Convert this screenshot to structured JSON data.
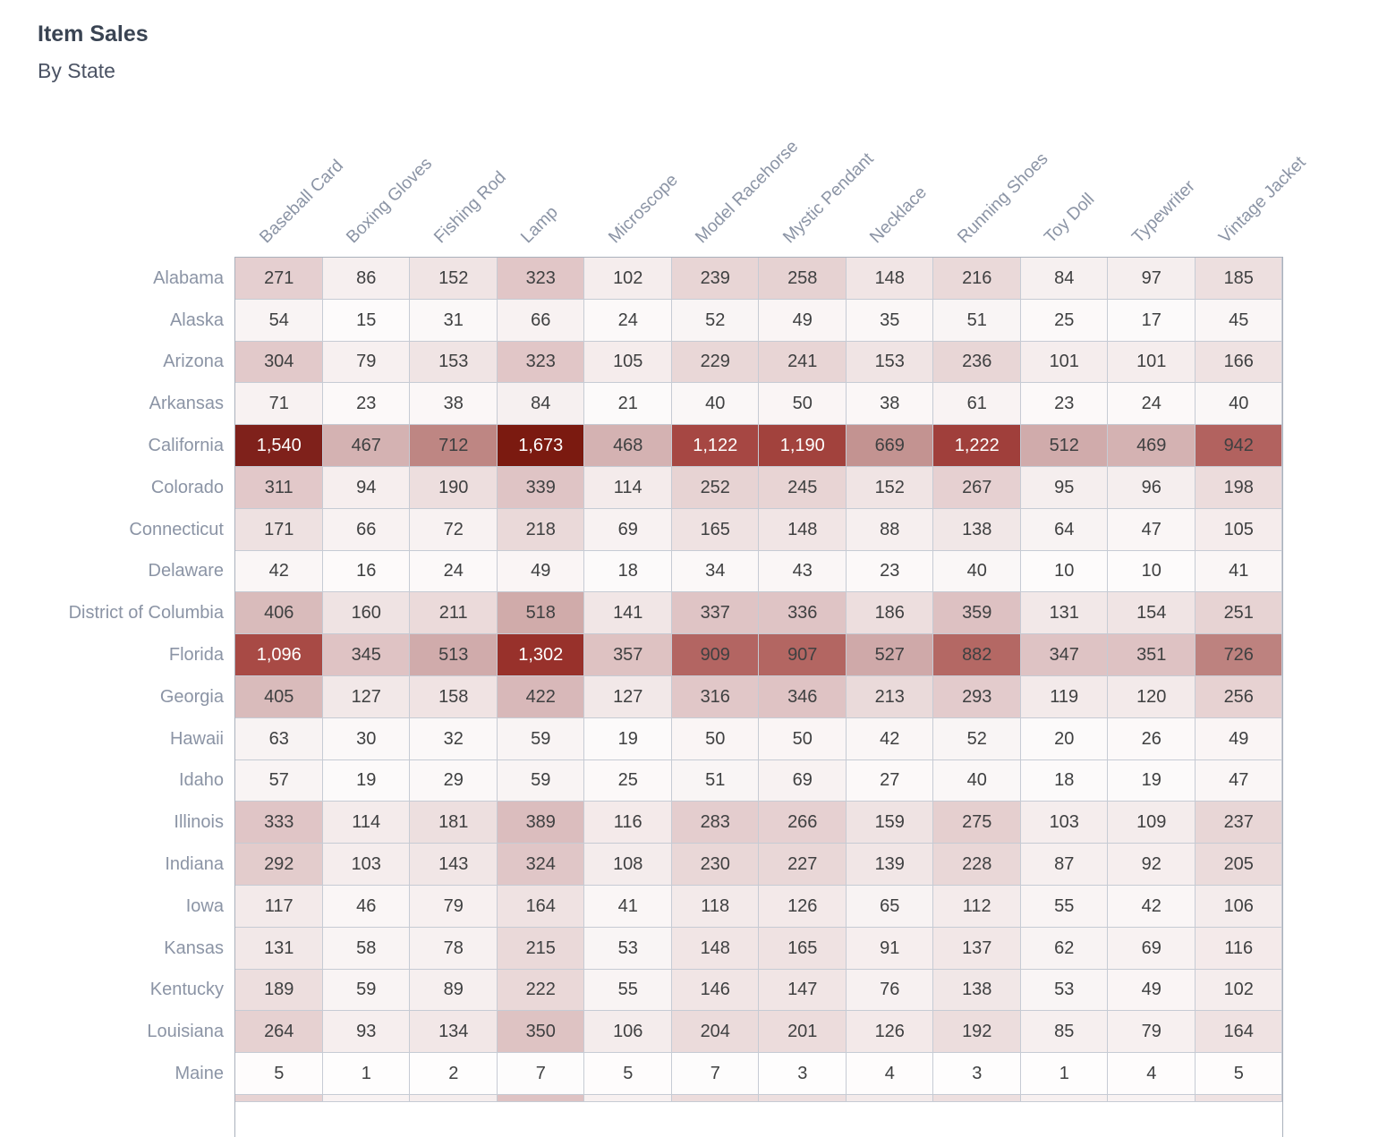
{
  "title": "Item Sales",
  "subtitle": "By State",
  "chart_data": {
    "type": "heatmap",
    "title": "Item Sales",
    "subtitle": "By State",
    "columns": [
      "Baseball Card",
      "Boxing Gloves",
      "Fishing Rod",
      "Lamp",
      "Microscope",
      "Model Racehorse",
      "Mystic Pendant",
      "Necklace",
      "Running Shoes",
      "Toy Doll",
      "Typewriter",
      "Vintage Jacket"
    ],
    "rows": [
      "Alabama",
      "Alaska",
      "Arizona",
      "Arkansas",
      "California",
      "Colorado",
      "Connecticut",
      "Delaware",
      "District of Columbia",
      "Florida",
      "Georgia",
      "Hawaii",
      "Idaho",
      "Illinois",
      "Indiana",
      "Iowa",
      "Kansas",
      "Kentucky",
      "Louisiana",
      "Maine"
    ],
    "values": [
      [
        271,
        86,
        152,
        323,
        102,
        239,
        258,
        148,
        216,
        84,
        97,
        185
      ],
      [
        54,
        15,
        31,
        66,
        24,
        52,
        49,
        35,
        51,
        25,
        17,
        45
      ],
      [
        304,
        79,
        153,
        323,
        105,
        229,
        241,
        153,
        236,
        101,
        101,
        166
      ],
      [
        71,
        23,
        38,
        84,
        21,
        40,
        50,
        38,
        61,
        23,
        24,
        40
      ],
      [
        1540,
        467,
        712,
        1673,
        468,
        1122,
        1190,
        669,
        1222,
        512,
        469,
        942
      ],
      [
        311,
        94,
        190,
        339,
        114,
        252,
        245,
        152,
        267,
        95,
        96,
        198
      ],
      [
        171,
        66,
        72,
        218,
        69,
        165,
        148,
        88,
        138,
        64,
        47,
        105
      ],
      [
        42,
        16,
        24,
        49,
        18,
        34,
        43,
        23,
        40,
        10,
        10,
        41
      ],
      [
        406,
        160,
        211,
        518,
        141,
        337,
        336,
        186,
        359,
        131,
        154,
        251
      ],
      [
        1096,
        345,
        513,
        1302,
        357,
        909,
        907,
        527,
        882,
        347,
        351,
        726
      ],
      [
        405,
        127,
        158,
        422,
        127,
        316,
        346,
        213,
        293,
        119,
        120,
        256
      ],
      [
        63,
        30,
        32,
        59,
        19,
        50,
        50,
        42,
        52,
        20,
        26,
        49
      ],
      [
        57,
        19,
        29,
        59,
        25,
        51,
        69,
        27,
        40,
        18,
        19,
        47
      ],
      [
        333,
        114,
        181,
        389,
        116,
        283,
        266,
        159,
        275,
        103,
        109,
        237
      ],
      [
        292,
        103,
        143,
        324,
        108,
        230,
        227,
        139,
        228,
        87,
        92,
        205
      ],
      [
        117,
        46,
        79,
        164,
        41,
        118,
        126,
        65,
        112,
        55,
        42,
        106
      ],
      [
        131,
        58,
        78,
        215,
        53,
        148,
        165,
        91,
        137,
        62,
        69,
        116
      ],
      [
        189,
        59,
        89,
        222,
        55,
        146,
        147,
        76,
        138,
        53,
        49,
        102
      ],
      [
        264,
        93,
        134,
        350,
        106,
        204,
        201,
        126,
        192,
        85,
        79,
        164
      ],
      [
        5,
        1,
        2,
        7,
        5,
        7,
        3,
        4,
        3,
        1,
        4,
        5
      ]
    ],
    "value_domain": [
      0,
      1673
    ],
    "color_scale": {
      "min_color": "#fefdfd",
      "max_color": "#7b1a10",
      "mid_color": "#b26360",
      "light_text_threshold": 0.6
    },
    "partial_next_row_tints": [
      0.15,
      0.04,
      0.06,
      0.21,
      0.05,
      0.12,
      0.11,
      0.07,
      0.11,
      0.05,
      0.04,
      0.1
    ],
    "grid": true,
    "legend": false
  }
}
